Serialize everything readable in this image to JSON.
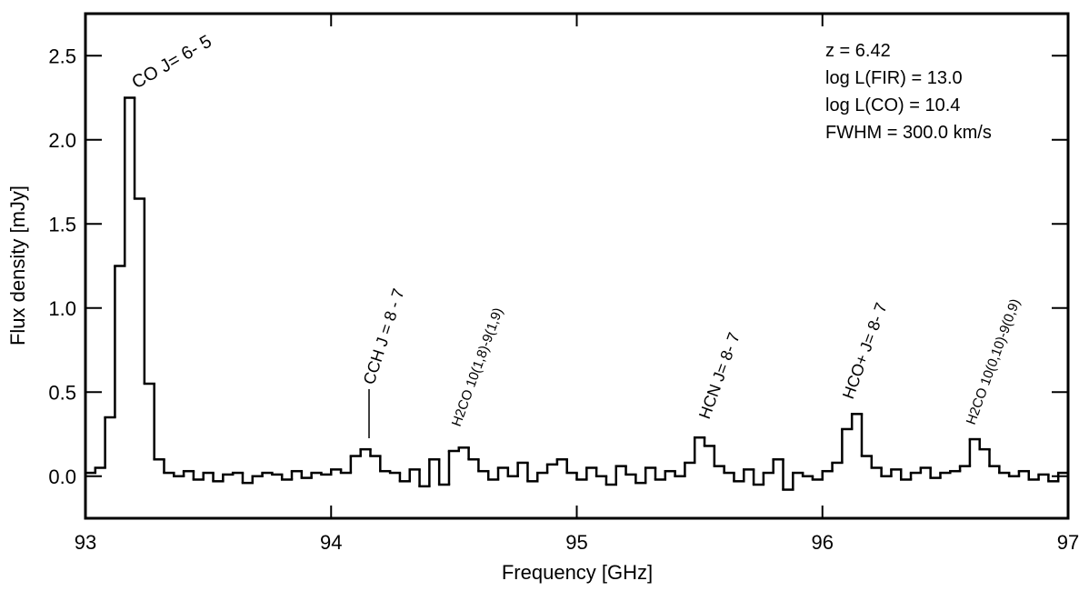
{
  "chart_data": {
    "type": "step",
    "xlabel": "Frequency [GHz]",
    "ylabel": "Flux density [mJy]",
    "info": [
      "z =  6.42",
      "log L(FIR) =  13.0",
      "log L(CO) =  10.4",
      "FWHM =  300.0 km/s"
    ],
    "annotations": [
      "CO J= 6- 5",
      "CCH J = 8 - 7",
      "H2CO 10(1,8)-9(1,9)",
      "HCN J= 8- 7",
      "HCO+ J= 8- 7",
      "H2CO 10(0,10)-9(0,9)"
    ],
    "color": "#000000",
    "xlim": [
      93,
      97
    ],
    "xticks": [
      93,
      94,
      95,
      96,
      97
    ],
    "ylim": [
      -0.25,
      2.75
    ],
    "yticks": [
      {
        "value": 0,
        "label": "0.0"
      },
      0.5,
      {
        "value": 1,
        "label": "1.0"
      },
      1.5,
      {
        "value": 2,
        "label": "2.0"
      },
      2.5
    ],
    "x": [
      93.02,
      93.06,
      93.1,
      93.14,
      93.18,
      93.22,
      93.26,
      93.3,
      93.34,
      93.38,
      93.42,
      93.46,
      93.5,
      93.54,
      93.58,
      93.62,
      93.66,
      93.7,
      93.74,
      93.78,
      93.82,
      93.86,
      93.9,
      93.94,
      93.98,
      94.02,
      94.06,
      94.1,
      94.14,
      94.18,
      94.22,
      94.26,
      94.3,
      94.34,
      94.38,
      94.42,
      94.46,
      94.5,
      94.54,
      94.58,
      94.62,
      94.66,
      94.7,
      94.74,
      94.78,
      94.82,
      94.86,
      94.9,
      94.94,
      94.98,
      95.02,
      95.06,
      95.1,
      95.14,
      95.18,
      95.22,
      95.26,
      95.3,
      95.34,
      95.38,
      95.42,
      95.46,
      95.5,
      95.54,
      95.58,
      95.62,
      95.66,
      95.7,
      95.74,
      95.78,
      95.82,
      95.86,
      95.9,
      95.94,
      95.98,
      96.02,
      96.06,
      96.1,
      96.14,
      96.18,
      96.22,
      96.26,
      96.3,
      96.34,
      96.38,
      96.42,
      96.46,
      96.5,
      96.54,
      96.58,
      96.62,
      96.66,
      96.7,
      96.74,
      96.78,
      96.82,
      96.86,
      96.9,
      96.94,
      96.98
    ],
    "values": [
      0.02,
      0.05,
      0.35,
      1.25,
      2.25,
      1.65,
      0.55,
      0.1,
      0.02,
      0.0,
      0.03,
      -0.02,
      0.02,
      -0.03,
      0.01,
      0.02,
      -0.04,
      0.0,
      0.02,
      0.01,
      -0.02,
      0.03,
      -0.01,
      0.02,
      0.01,
      0.04,
      0.02,
      0.12,
      0.16,
      0.12,
      0.03,
      0.02,
      -0.03,
      0.04,
      -0.06,
      0.1,
      -0.05,
      0.15,
      0.17,
      0.1,
      0.03,
      -0.02,
      0.05,
      0.0,
      0.08,
      -0.03,
      0.02,
      0.07,
      0.1,
      0.02,
      -0.02,
      0.05,
      0.0,
      -0.05,
      0.06,
      0.01,
      -0.04,
      0.05,
      -0.02,
      0.03,
      0.0,
      0.08,
      0.23,
      0.18,
      0.06,
      0.02,
      -0.03,
      0.04,
      -0.05,
      0.02,
      0.1,
      -0.08,
      0.02,
      0.0,
      -0.02,
      0.03,
      0.08,
      0.28,
      0.37,
      0.12,
      0.05,
      0.0,
      0.04,
      -0.02,
      0.02,
      0.05,
      -0.01,
      0.02,
      0.03,
      0.06,
      0.22,
      0.16,
      0.06,
      0.02,
      0.0,
      0.03,
      -0.02,
      0.01,
      -0.03,
      0.02
    ]
  }
}
